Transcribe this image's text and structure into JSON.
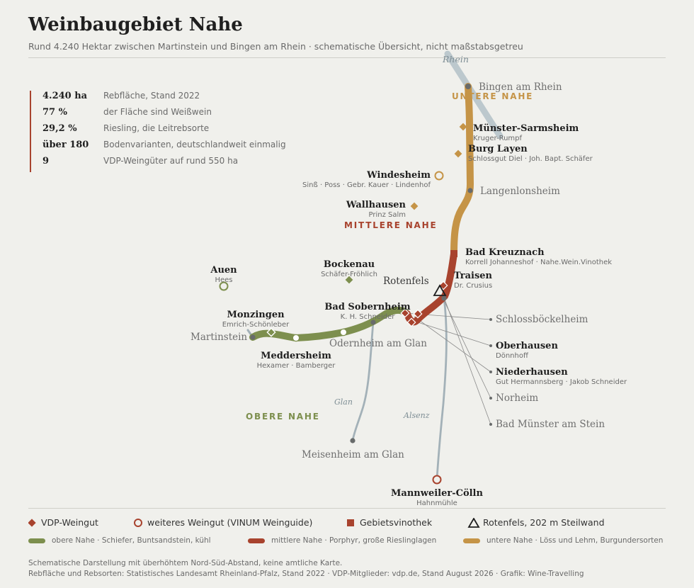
{
  "header": {
    "title": "Weinbaugebiet Nahe",
    "subtitle": "Rund 4.240 Hektar zwischen Martinstein und Bingen am Rhein · schematische Übersicht, nicht maßstabsgetreu"
  },
  "stats": [
    {
      "value": "4.240 ha",
      "label": "Rebfläche, Stand 2022"
    },
    {
      "value": "77 %",
      "label": "der Fläche sind Weißwein"
    },
    {
      "value": "29,2 %",
      "label": "Riesling, die Leitrebsorte"
    },
    {
      "value": "über 180",
      "label": "Bodenvarianten, deutschlandweit einmalig"
    },
    {
      "value": "9",
      "label": "VDP-Weingüter auf rund 550 ha"
    }
  ],
  "colors": {
    "obere": "#7d8f4e",
    "mittlere": "#a8432e",
    "untere": "#c59447",
    "tributary": "#a3b1b8",
    "rhine": "#bcc8cd",
    "muted_dot": "#686b6b"
  },
  "map": {
    "rivers": {
      "rhein": "Rhein",
      "glan": "Glan",
      "alsenz": "Alsenz"
    },
    "regions": {
      "untere": "UNTERE NAHE",
      "mittlere": "MITTLERE NAHE",
      "obere": "OBERE NAHE"
    },
    "places": {
      "bingen": "Bingen am Rhein",
      "langenlonsheim": "Langenlonsheim",
      "martinstein": "Martinstein",
      "rotenfels": "Rotenfels",
      "odernheim": "Odernheim am Glan",
      "meisenheim": "Meisenheim am Glan",
      "schlossboeckelheim": "Schlossböckelheim",
      "norheim": "Norheim",
      "bad_muenster": "Bad Münster am Stein"
    },
    "wineries": {
      "muenster_sarmsheim": {
        "name": "Münster-Sarmsheim",
        "sub": "Kruger-Rumpf"
      },
      "burg_layen": {
        "name": "Burg Layen",
        "sub": "Schlossgut Diel · Joh. Bapt. Schäfer"
      },
      "windesheim": {
        "name": "Windesheim",
        "sub": "Sinß · Poss · Gebr. Kauer · Lindenhof"
      },
      "wallhausen": {
        "name": "Wallhausen",
        "sub": "Prinz Salm"
      },
      "bad_kreuznach": {
        "name": "Bad Kreuznach",
        "sub": "Korrell Johanneshof · Nahe.Wein.Vinothek"
      },
      "traisen": {
        "name": "Traisen",
        "sub": "Dr. Crusius"
      },
      "bockenau": {
        "name": "Bockenau",
        "sub": "Schäfer-Fröhlich"
      },
      "auen": {
        "name": "Auen",
        "sub": "Hees"
      },
      "monzingen": {
        "name": "Monzingen",
        "sub": "Emrich-Schönleber"
      },
      "bad_sobernheim": {
        "name": "Bad Sobernheim",
        "sub": "K. H. Schneider"
      },
      "meddersheim": {
        "name": "Meddersheim",
        "sub": "Hexamer · Bamberger"
      },
      "oberhausen": {
        "name": "Oberhausen",
        "sub": "Dönnhoff"
      },
      "niederhausen": {
        "name": "Niederhausen",
        "sub": "Gut Hermannsberg · Jakob Schneider"
      },
      "mannweiler": {
        "name": "Mannweiler-Cölln",
        "sub": "Hahnmühle"
      }
    }
  },
  "legend": {
    "vdp": "VDP-Weingut",
    "weingut": "weiteres Weingut (VINUM Weinguide)",
    "vinothek": "Gebietsvinothek",
    "rotenfels": "Rotenfels, 202 m Steilwand",
    "obere": "obere Nahe · Schiefer, Buntsandstein, kühl",
    "mittlere": "mittlere Nahe · Porphyr, große Rieslinglagen",
    "untere": "untere Nahe · Löss und Lehm, Burgundersorten"
  },
  "footnote": {
    "line1": "Schematische Darstellung mit überhöhtem Nord-Süd-Abstand, keine amtliche Karte.",
    "line2": "Rebfläche und Rebsorten: Statistisches Landesamt Rheinland-Pfalz, Stand 2022 · VDP-Mitglieder: vdp.de, Stand August 2026 · Grafik: Wine-Travelling"
  }
}
